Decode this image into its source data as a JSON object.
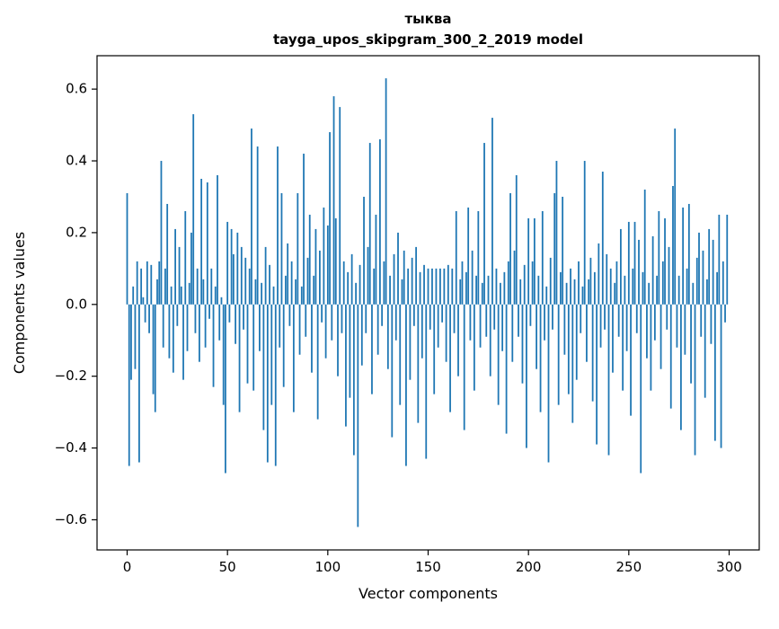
{
  "figure": {
    "title_line1": "тыква",
    "title_line2": "tayga_upos_skipgram_300_2_2019 model",
    "xlabel": "Vector components",
    "ylabel": "Components values"
  },
  "chart_data": {
    "type": "bar",
    "title": "тыква",
    "subtitle": "tayga_upos_skipgram_300_2_2019 model",
    "xlabel": "Vector components",
    "ylabel": "Components values",
    "bar_color": "#1f77b4",
    "grid": false,
    "legend": "none",
    "xlim": [
      -15,
      315
    ],
    "ylim": [
      -0.684,
      0.693
    ],
    "x_ticks": [
      0,
      50,
      100,
      150,
      200,
      250,
      300
    ],
    "y_ticks": [
      -0.6,
      -0.4,
      -0.2,
      0.0,
      0.2,
      0.4,
      0.6
    ],
    "y_tick_labels": [
      "−0.6",
      "−0.4",
      "−0.2",
      "0.0",
      "0.2",
      "0.4",
      "0.6"
    ],
    "x_start": 0,
    "x_step": 1,
    "values": [
      0.31,
      -0.45,
      -0.21,
      0.05,
      -0.18,
      0.12,
      -0.44,
      0.1,
      0.02,
      -0.05,
      0.12,
      -0.08,
      0.11,
      -0.25,
      -0.3,
      0.07,
      0.12,
      0.4,
      -0.12,
      0.1,
      0.28,
      -0.15,
      0.05,
      -0.19,
      0.21,
      -0.06,
      0.16,
      0.05,
      -0.21,
      0.26,
      -0.13,
      0.06,
      0.2,
      0.53,
      -0.08,
      0.1,
      -0.16,
      0.35,
      0.07,
      -0.12,
      0.34,
      -0.04,
      0.1,
      -0.23,
      0.05,
      0.36,
      -0.1,
      0.02,
      -0.28,
      -0.47,
      0.23,
      -0.05,
      0.21,
      0.14,
      -0.11,
      0.2,
      -0.3,
      0.16,
      -0.07,
      0.13,
      -0.22,
      0.1,
      0.49,
      -0.24,
      0.07,
      0.44,
      -0.13,
      0.06,
      -0.35,
      0.16,
      -0.44,
      0.11,
      -0.28,
      0.05,
      -0.45,
      0.44,
      -0.12,
      0.31,
      -0.23,
      0.08,
      0.17,
      -0.06,
      0.12,
      -0.3,
      0.07,
      0.31,
      -0.14,
      0.05,
      0.42,
      -0.09,
      0.13,
      0.25,
      -0.19,
      0.08,
      0.21,
      -0.32,
      0.15,
      -0.05,
      0.27,
      -0.15,
      0.22,
      0.48,
      -0.1,
      0.58,
      0.24,
      -0.2,
      0.55,
      -0.08,
      0.12,
      -0.34,
      0.09,
      -0.26,
      0.14,
      -0.42,
      0.06,
      -0.62,
      0.11,
      -0.17,
      0.3,
      -0.08,
      0.16,
      0.45,
      -0.25,
      0.1,
      0.25,
      -0.14,
      0.46,
      -0.06,
      0.12,
      0.63,
      -0.18,
      0.08,
      -0.37,
      0.14,
      -0.1,
      0.2,
      -0.28,
      0.07,
      0.15,
      -0.45,
      0.1,
      -0.21,
      0.13,
      -0.06,
      0.16,
      -0.33,
      0.09,
      -0.15,
      0.11,
      -0.43,
      0.1,
      -0.07,
      0.1,
      -0.25,
      0.1,
      -0.12,
      0.1,
      -0.05,
      0.1,
      -0.16,
      0.11,
      -0.3,
      0.1,
      -0.08,
      0.26,
      -0.2,
      0.07,
      0.12,
      -0.35,
      0.09,
      0.27,
      -0.1,
      0.15,
      -0.24,
      0.08,
      0.26,
      -0.12,
      0.06,
      0.45,
      -0.09,
      0.08,
      -0.2,
      0.52,
      -0.07,
      0.1,
      -0.28,
      0.06,
      -0.13,
      0.09,
      -0.36,
      0.12,
      0.31,
      -0.16,
      0.15,
      0.36,
      -0.09,
      0.07,
      -0.22,
      0.11,
      -0.4,
      0.24,
      -0.06,
      0.12,
      0.24,
      -0.18,
      0.08,
      -0.3,
      0.26,
      -0.1,
      0.05,
      -0.44,
      0.13,
      -0.07,
      0.31,
      0.4,
      -0.28,
      0.09,
      0.3,
      -0.14,
      0.06,
      -0.25,
      0.1,
      -0.33,
      0.07,
      -0.21,
      0.12,
      -0.08,
      0.05,
      0.4,
      -0.16,
      0.07,
      0.13,
      -0.27,
      0.09,
      -0.39,
      0.17,
      -0.12,
      0.37,
      -0.07,
      0.14,
      -0.42,
      0.1,
      -0.19,
      0.06,
      0.12,
      -0.09,
      0.21,
      -0.24,
      0.08,
      -0.13,
      0.23,
      -0.31,
      0.1,
      0.23,
      -0.08,
      0.18,
      -0.47,
      0.09,
      0.32,
      -0.15,
      0.06,
      -0.24,
      0.19,
      -0.1,
      0.08,
      0.26,
      -0.18,
      0.12,
      0.24,
      -0.07,
      0.16,
      -0.29,
      0.33,
      0.49,
      -0.12,
      0.08,
      -0.35,
      0.27,
      -0.14,
      0.1,
      0.28,
      -0.22,
      0.06,
      -0.42,
      0.13,
      0.2,
      -0.09,
      0.15,
      -0.26,
      0.07,
      0.21,
      -0.11,
      0.18,
      -0.38,
      0.09,
      0.25,
      -0.4,
      0.12,
      -0.05,
      0.25
    ]
  }
}
